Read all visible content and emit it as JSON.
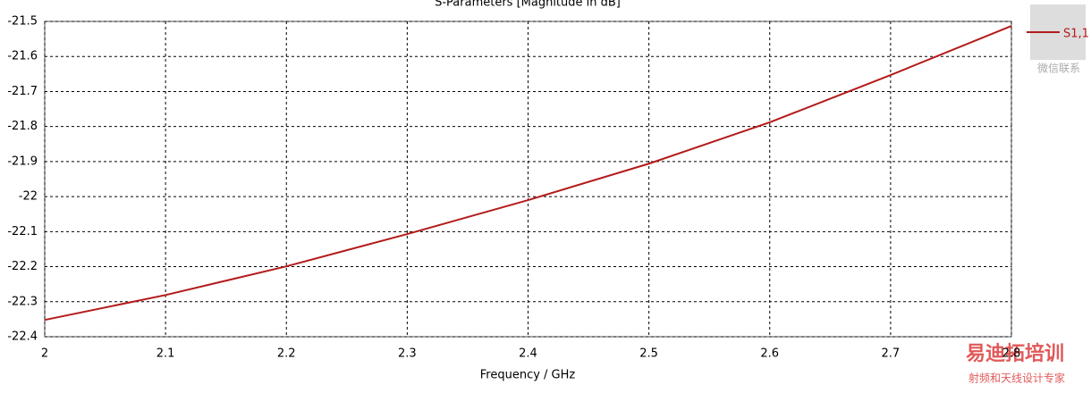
{
  "chart_data": {
    "type": "line",
    "title": "S-Parameters [Magnitude in dB]",
    "x_label": "Frequency / GHz",
    "x": [
      2,
      2.1,
      2.2,
      2.3,
      2.4,
      2.5,
      2.6,
      2.7,
      2.8
    ],
    "series": [
      {
        "name": "S1,1",
        "color": "#b31b1b",
        "values": [
          -22.352,
          -22.281,
          -22.199,
          -22.107,
          -22.01,
          -21.906,
          -21.788,
          -21.653,
          -21.513
        ]
      }
    ],
    "xlim": [
      2,
      2.8
    ],
    "xticks": [
      2,
      2.1,
      2.2,
      2.3,
      2.4,
      2.5,
      2.6,
      2.7,
      2.8
    ],
    "ylim": [
      -22.4,
      -21.5
    ],
    "yticks": [
      -22.4,
      -22.3,
      -22.2,
      -22.1,
      -22,
      -21.9,
      -21.8,
      -21.7,
      -21.6,
      -21.5
    ],
    "grid": true,
    "legend": "top-right",
    "annotations": [
      "微信联系",
      "易迪拓培训",
      "射频和天线设计专家"
    ]
  }
}
